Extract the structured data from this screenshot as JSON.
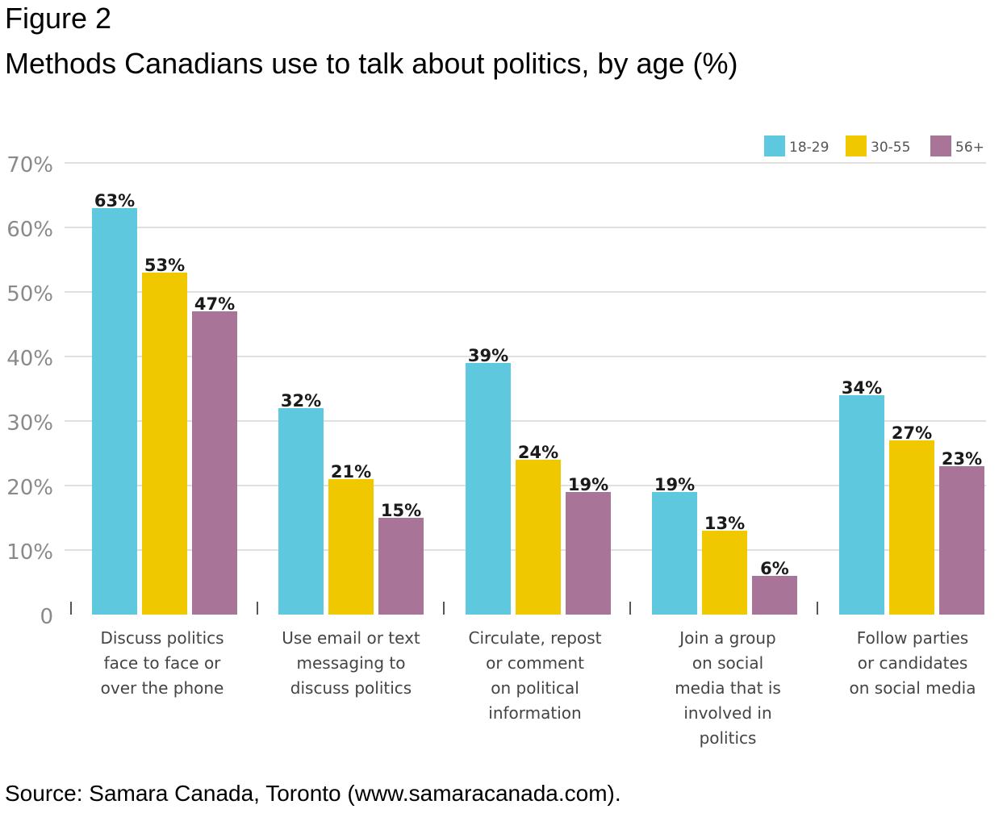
{
  "figure": {
    "label": "Figure 2",
    "title": "Methods Canadians use to talk about politics, by age (%)",
    "source": "Source: Samara Canada, Toronto (www.samaracanada.com)."
  },
  "chart_data": {
    "type": "bar",
    "title": "",
    "xlabel": "",
    "ylabel": "",
    "ylim": [
      0,
      70
    ],
    "yticks": [
      {
        "value": 0,
        "label": "0"
      },
      {
        "value": 10,
        "label": "10%"
      },
      {
        "value": 20,
        "label": "20%"
      },
      {
        "value": 30,
        "label": "30%"
      },
      {
        "value": 40,
        "label": "40%"
      },
      {
        "value": 50,
        "label": "50%"
      },
      {
        "value": 60,
        "label": "60%"
      },
      {
        "value": 70,
        "label": "70%"
      }
    ],
    "grid": true,
    "legend_position": "top-right",
    "categories": [
      [
        "Discuss politics",
        "face to face or",
        "over the phone"
      ],
      [
        "Use email or text",
        "messaging to",
        "discuss politics"
      ],
      [
        "Circulate, repost",
        "or comment",
        "on political",
        "information"
      ],
      [
        "Join a group",
        "on social",
        "media that is",
        "involved in",
        "politics"
      ],
      [
        "Follow parties",
        "or candidates",
        "on social media"
      ]
    ],
    "series": [
      {
        "name": "18-29",
        "color": "#5ec8de",
        "values": [
          63,
          32,
          39,
          19,
          34
        ],
        "labels": [
          "63%",
          "32%",
          "39%",
          "19%",
          "34%"
        ]
      },
      {
        "name": "30-55",
        "color": "#f0c800",
        "values": [
          53,
          21,
          24,
          13,
          27
        ],
        "labels": [
          "53%",
          "21%",
          "24%",
          "13%",
          "27%"
        ]
      },
      {
        "name": "56+",
        "color": "#a87598",
        "values": [
          47,
          15,
          19,
          6,
          23
        ],
        "labels": [
          "47%",
          "15%",
          "19%",
          "6%",
          "23%"
        ]
      }
    ]
  }
}
